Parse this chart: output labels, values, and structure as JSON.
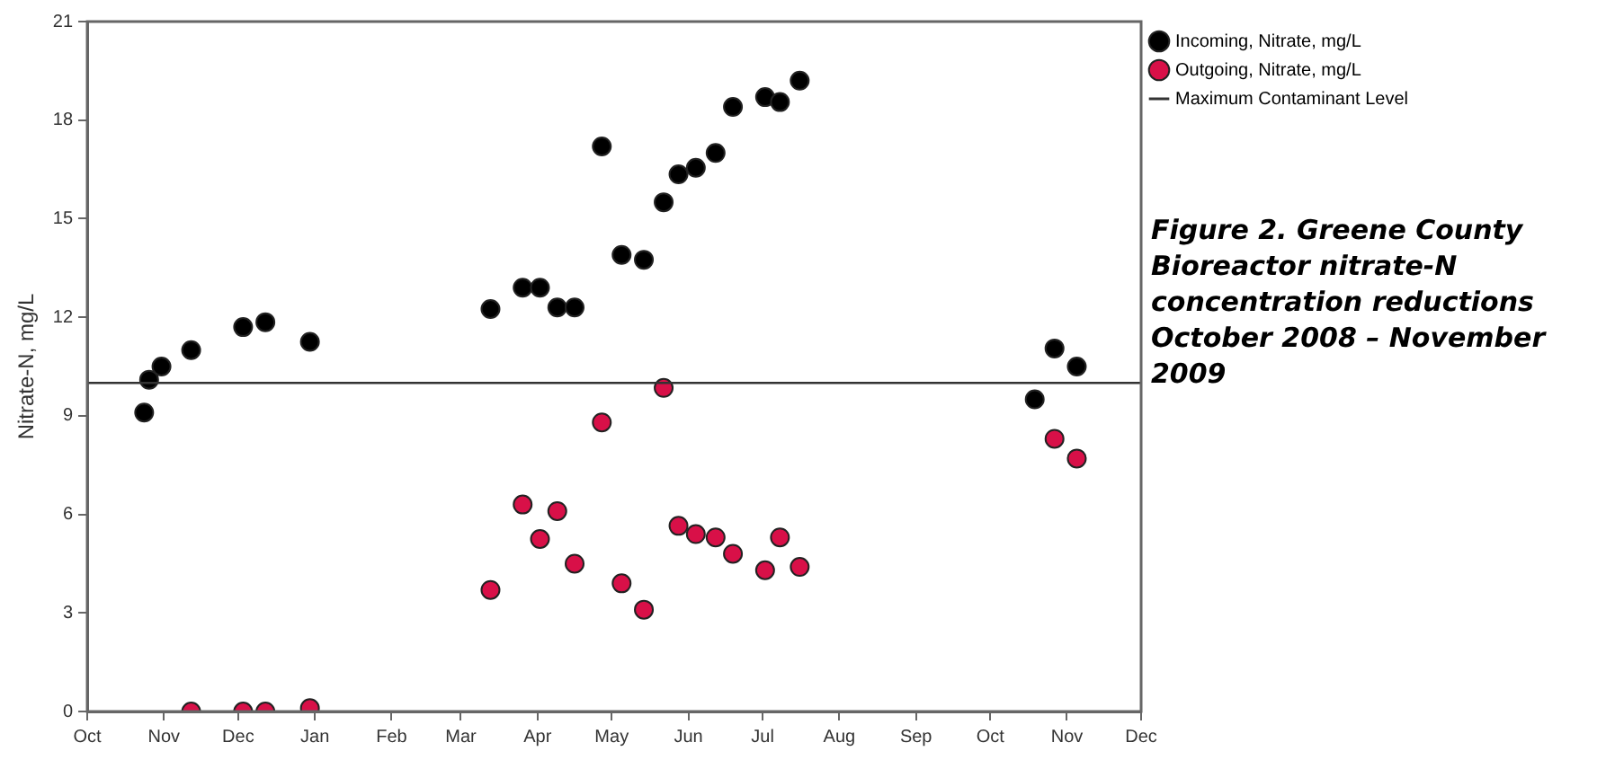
{
  "chart_data": {
    "type": "scatter",
    "title": "Figure 2. Greene County Bioreactor nitrate-N concentration reductions October 2008 – November 2009",
    "ylabel": "Nitrate-N, mg/L",
    "xlim": [
      "2008-10-01",
      "2009-12-01"
    ],
    "xticks": [
      {
        "value": "2008-10-01",
        "label": "Oct"
      },
      {
        "value": "2008-11-01",
        "label": "Nov"
      },
      {
        "value": "2008-12-01",
        "label": "Dec"
      },
      {
        "value": "2009-01-01",
        "label": "Jan"
      },
      {
        "value": "2009-02-01",
        "label": "Feb"
      },
      {
        "value": "2009-03-01",
        "label": "Mar"
      },
      {
        "value": "2009-04-01",
        "label": "Apr"
      },
      {
        "value": "2009-05-01",
        "label": "May"
      },
      {
        "value": "2009-06-01",
        "label": "Jun"
      },
      {
        "value": "2009-07-01",
        "label": "Jul"
      },
      {
        "value": "2009-08-01",
        "label": "Aug"
      },
      {
        "value": "2009-09-01",
        "label": "Sep"
      },
      {
        "value": "2009-10-01",
        "label": "Oct"
      },
      {
        "value": "2009-11-01",
        "label": "Nov"
      },
      {
        "value": "2009-12-01",
        "label": "Dec"
      }
    ],
    "ylim": [
      0,
      21
    ],
    "yticks": [
      0,
      3,
      6,
      9,
      12,
      15,
      18,
      21
    ],
    "grid": false,
    "legend": "top right",
    "marker": "circle",
    "series": [
      {
        "name": "Incoming, Nitrate, mg/L",
        "color": "#000000",
        "x": [
          "2008-10-24",
          "2008-10-26",
          "2008-10-31",
          "2008-11-12",
          "2008-12-03",
          "2008-12-12",
          "2008-12-30",
          "2009-03-13",
          "2009-03-26",
          "2009-04-02",
          "2009-04-09",
          "2009-04-16",
          "2009-04-27",
          "2009-05-05",
          "2009-05-14",
          "2009-05-22",
          "2009-05-28",
          "2009-06-04",
          "2009-06-12",
          "2009-06-19",
          "2009-07-02",
          "2009-07-08",
          "2009-07-16",
          "2009-10-19",
          "2009-10-27",
          "2009-11-05"
        ],
        "values": [
          9.1,
          10.1,
          10.5,
          11.0,
          11.7,
          11.85,
          11.25,
          12.25,
          12.9,
          12.9,
          12.3,
          12.3,
          17.2,
          13.9,
          13.75,
          15.5,
          16.35,
          16.55,
          17.0,
          18.4,
          18.7,
          18.55,
          19.2,
          9.5,
          11.05,
          10.5
        ]
      },
      {
        "name": "Outgoing, Nitrate, mg/L",
        "color": "#d81048",
        "x": [
          "2008-11-12",
          "2008-12-03",
          "2008-12-12",
          "2008-12-30",
          "2009-03-13",
          "2009-03-26",
          "2009-04-02",
          "2009-04-09",
          "2009-04-16",
          "2009-04-27",
          "2009-05-05",
          "2009-05-14",
          "2009-05-22",
          "2009-05-28",
          "2009-06-04",
          "2009-06-12",
          "2009-06-19",
          "2009-07-02",
          "2009-07-08",
          "2009-07-16",
          "2009-10-27",
          "2009-11-05"
        ],
        "values": [
          0,
          0,
          0,
          0.1,
          3.7,
          6.3,
          5.25,
          6.1,
          4.5,
          8.8,
          3.9,
          3.1,
          9.85,
          5.65,
          5.4,
          5.3,
          4.8,
          4.3,
          5.3,
          4.4,
          8.3,
          7.7
        ]
      }
    ],
    "ref_lines": [
      {
        "axis": "y",
        "value": 10,
        "label": "Maximum Contaminant Level",
        "color": "#333333",
        "line_style": "solid"
      }
    ]
  }
}
